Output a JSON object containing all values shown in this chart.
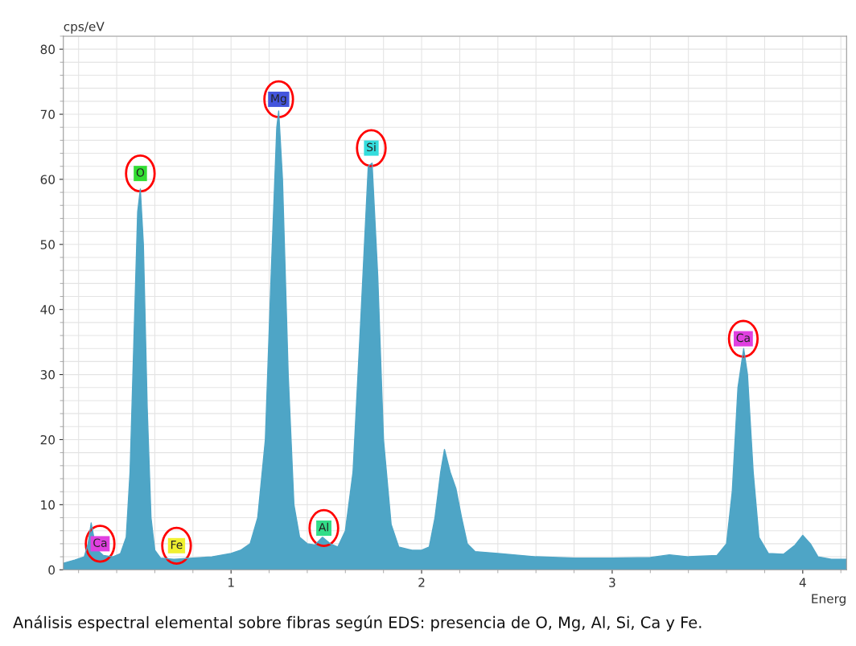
{
  "chart_data": {
    "type": "area",
    "xlabel": "Energ",
    "ylabel": "cps/eV",
    "x": [
      0.12,
      0.18,
      0.23,
      0.25,
      0.266,
      0.28,
      0.3,
      0.33,
      0.38,
      0.42,
      0.45,
      0.47,
      0.49,
      0.51,
      0.524,
      0.54,
      0.56,
      0.58,
      0.6,
      0.63,
      0.7,
      0.8,
      0.9,
      1.0,
      1.05,
      1.1,
      1.14,
      1.18,
      1.21,
      1.24,
      1.25,
      1.27,
      1.3,
      1.33,
      1.36,
      1.4,
      1.44,
      1.48,
      1.52,
      1.56,
      1.6,
      1.64,
      1.68,
      1.72,
      1.74,
      1.77,
      1.8,
      1.84,
      1.88,
      1.95,
      2.0,
      2.04,
      2.07,
      2.1,
      2.12,
      2.15,
      2.18,
      2.21,
      2.24,
      2.28,
      2.4,
      2.6,
      2.8,
      3.0,
      3.2,
      3.3,
      3.4,
      3.55,
      3.6,
      3.63,
      3.66,
      3.69,
      3.71,
      3.74,
      3.77,
      3.82,
      3.9,
      3.96,
      4.0,
      4.04,
      4.08,
      4.15,
      4.23
    ],
    "series": [
      {
        "color": "#4ea5c6",
        "values": [
          1.0,
          1.5,
          2.0,
          4,
          7.2,
          5,
          3,
          2.2,
          2.0,
          2.5,
          5,
          15,
          35,
          55,
          58.5,
          50,
          25,
          8,
          3,
          1.8,
          1.6,
          1.8,
          2.0,
          2.5,
          3.0,
          4,
          8,
          20,
          45,
          68,
          70.5,
          60,
          30,
          10,
          5,
          4,
          3.8,
          5,
          4,
          3.5,
          6,
          15,
          38,
          62,
          62.5,
          45,
          20,
          7,
          3.5,
          3,
          3,
          3.5,
          8,
          15,
          18.5,
          15,
          12.5,
          8,
          4,
          2.8,
          2.5,
          2.0,
          1.8,
          1.8,
          1.9,
          2.3,
          2.0,
          2.2,
          4,
          12,
          28,
          34,
          30,
          15,
          5,
          2.5,
          2.4,
          3.8,
          5.3,
          4,
          2,
          1.6,
          1.6
        ]
      }
    ],
    "xlim": [
      0.12,
      4.23
    ],
    "ylim": [
      0,
      82
    ],
    "xticks": [
      1,
      2,
      3,
      4
    ],
    "yticks": [
      0,
      10,
      20,
      30,
      40,
      50,
      60,
      70,
      80
    ],
    "grid": true,
    "annotations": [
      {
        "text": "Ca",
        "x": 0.313,
        "y": 4.0
      },
      {
        "text": "O",
        "x": 0.524,
        "y": 60.9
      },
      {
        "text": "Fe",
        "x": 0.714,
        "y": 3.7
      },
      {
        "text": "Mg",
        "x": 1.25,
        "y": 72.3
      },
      {
        "text": "Al",
        "x": 1.487,
        "y": 6.4
      },
      {
        "text": "Si",
        "x": 1.736,
        "y": 64.8
      },
      {
        "text": "Ca",
        "x": 3.688,
        "y": 35.5
      },
      "Análisis espectral elemental sobre fibras según EDS: presencia de O, Mg, Al, Si, Ca y Fe."
    ]
  }
}
